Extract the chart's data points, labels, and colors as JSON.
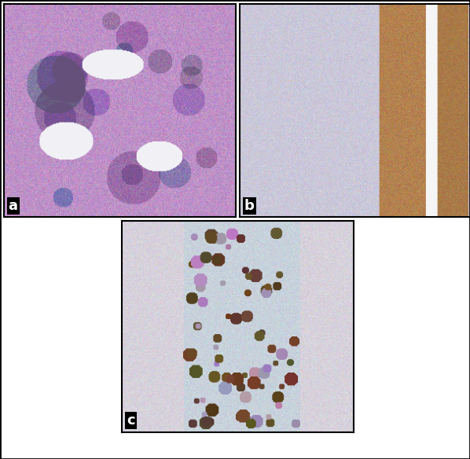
{
  "background_color": "#ffffff",
  "border_color": "#000000",
  "border_linewidth": 1.5,
  "label_a": "a",
  "label_b": "b",
  "label_c": "c",
  "label_fontsize": 13,
  "label_color": "#ffffff",
  "label_bg": "#000000",
  "fig_width": 5.98,
  "fig_height": 5.84,
  "dpi": 100
}
